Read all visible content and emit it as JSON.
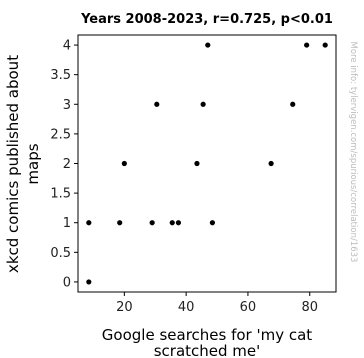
{
  "chart_data": {
    "type": "scatter",
    "title": "Years 2008-2023, r=0.725, p<0.01",
    "xlabel_lines": [
      "Google searches for 'my cat",
      "scratched me'"
    ],
    "ylabel_lines": [
      "xkcd comics published about",
      "maps"
    ],
    "watermark": "More info: tylervigen.com/spurious/correlation/1633",
    "xlim": [
      5,
      88.5
    ],
    "ylim": [
      -0.17,
      4.17
    ],
    "xticks": [
      20,
      40,
      60,
      80
    ],
    "yticks": [
      0,
      0.5,
      1,
      1.5,
      2,
      2.5,
      3,
      3.5,
      4
    ],
    "ytick_labels": [
      "0",
      "0.5",
      "1",
      "1.5",
      "2",
      "2.5",
      "3",
      "3.5",
      "4"
    ],
    "grid": false,
    "legend": "none",
    "point_color": "#000000",
    "points": [
      {
        "x": 8.5,
        "y": 0
      },
      {
        "x": 8.5,
        "y": 1
      },
      {
        "x": 18.5,
        "y": 1
      },
      {
        "x": 20.0,
        "y": 2
      },
      {
        "x": 29.0,
        "y": 1
      },
      {
        "x": 30.5,
        "y": 3
      },
      {
        "x": 35.5,
        "y": 1
      },
      {
        "x": 37.5,
        "y": 1
      },
      {
        "x": 43.5,
        "y": 2
      },
      {
        "x": 45.5,
        "y": 3
      },
      {
        "x": 47.0,
        "y": 4
      },
      {
        "x": 48.5,
        "y": 1
      },
      {
        "x": 67.5,
        "y": 2
      },
      {
        "x": 74.5,
        "y": 3
      },
      {
        "x": 79.0,
        "y": 4
      },
      {
        "x": 85.0,
        "y": 4
      }
    ]
  }
}
